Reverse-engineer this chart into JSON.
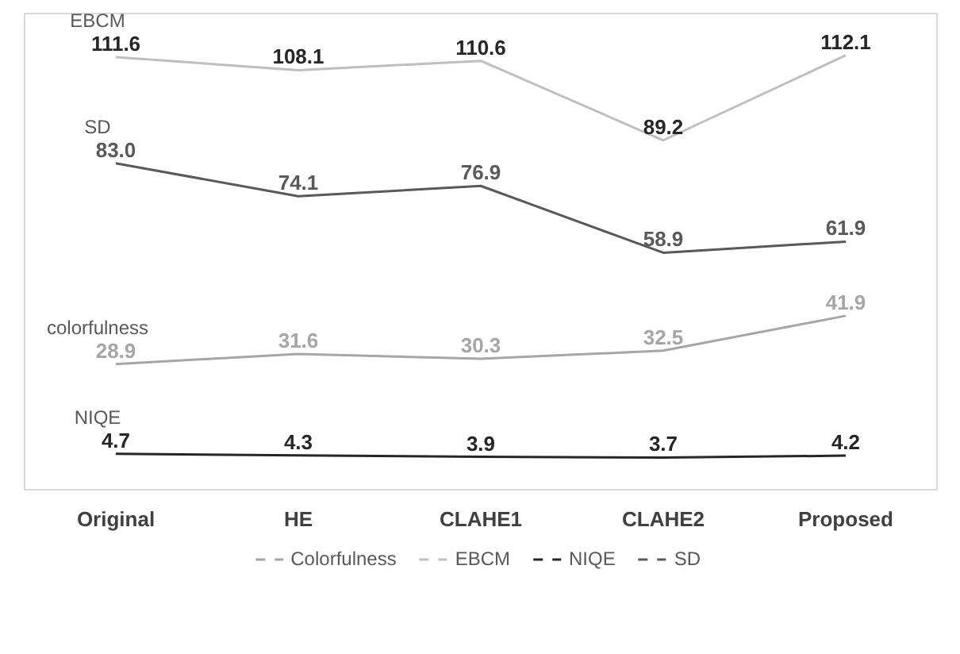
{
  "chart_data": {
    "type": "line",
    "categories": [
      "Original",
      "HE",
      "CLAHE1",
      "CLAHE2",
      "Proposed"
    ],
    "series": [
      {
        "name": "Colorfulness",
        "color": "#a6a6a6",
        "values": [
          28.9,
          31.6,
          30.3,
          32.5,
          41.9
        ],
        "value_labels": [
          "28.9",
          "31.6",
          "30.3",
          "32.5",
          "41.9"
        ]
      },
      {
        "name": "EBCM",
        "color": "#bfbfbf",
        "values": [
          111.6,
          108.1,
          110.6,
          89.2,
          112.1
        ],
        "value_labels": [
          "111.6",
          "108.1",
          "110.6",
          "89.2",
          "112.1"
        ]
      },
      {
        "name": "NIQE",
        "color": "#262626",
        "values": [
          4.7,
          4.3,
          3.9,
          3.7,
          4.2
        ],
        "value_labels": [
          "4.7",
          "4.3",
          "3.9",
          "3.7",
          "4.2"
        ]
      },
      {
        "name": "SD",
        "color": "#595959",
        "values": [
          83.0,
          74.1,
          76.9,
          58.9,
          61.9
        ],
        "value_labels": [
          "83.0",
          "74.1",
          "76.9",
          "58.9",
          "61.9"
        ]
      }
    ],
    "annotations": [
      "EBCM",
      "SD",
      "colorfulness",
      "NIQE"
    ],
    "legend": "bottom",
    "grid": false,
    "marker": "none",
    "line_style": "solid"
  }
}
